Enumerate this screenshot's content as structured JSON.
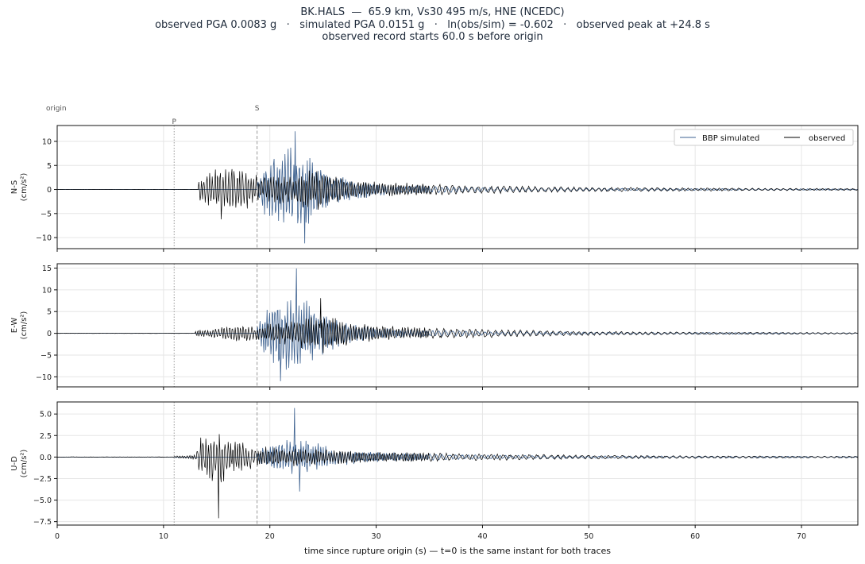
{
  "chart_data": {
    "type": "line",
    "title": "BK.HALS  —  65.9 km, Vs30 495 m/s, HNE (NCEDC)",
    "subtitle": "observed PGA 0.0083 g   ·   simulated PGA 0.0151 g   ·   ln(obs/sim) = -0.602   ·   observed peak at +24.8 s",
    "subtitle2": "observed record starts 60.0 s before origin",
    "xlabel": "time since rupture origin (s)   —   t=0 is the same instant for both traces",
    "xlim": [
      0,
      75.3
    ],
    "xticks": [
      0,
      10,
      20,
      30,
      40,
      50,
      60,
      70
    ],
    "markers": {
      "origin_label": "origin",
      "p_label": "P",
      "p_time": 11.0,
      "s_label": "S",
      "s_time": 18.8
    },
    "legend": {
      "position": "top-right",
      "simulated": "BBP simulated",
      "observed": "observed"
    },
    "colors": {
      "simulated": "#3e6290",
      "observed": "#000000",
      "grid": "#e6e6e6",
      "marker": "#999999"
    },
    "panels": [
      {
        "ylabel": "N-S",
        "yunit": "(cm/s²)",
        "ylim": [
          -12.3,
          13.3
        ],
        "yticks": [
          -10,
          -5,
          0,
          5,
          10
        ],
        "tick_labels": [
          "−10",
          "−5",
          "0",
          "5",
          "10"
        ],
        "observed": {
          "onset": 13.3,
          "envelope": [
            [
              13.3,
              2.5
            ],
            [
              14.5,
              4.5
            ],
            [
              15.5,
              5.0
            ],
            [
              16.5,
              5.5
            ],
            [
              17.5,
              4.5
            ],
            [
              19.0,
              3.0
            ],
            [
              21.0,
              3.0
            ],
            [
              23.0,
              4.0
            ],
            [
              24.5,
              4.5
            ],
            [
              26.0,
              3.0
            ],
            [
              28.0,
              2.0
            ],
            [
              32.0,
              1.5
            ],
            [
              40.0,
              0.9
            ],
            [
              50.0,
              0.5
            ],
            [
              60.0,
              0.35
            ],
            [
              70.0,
              0.25
            ],
            [
              75.3,
              0.2
            ]
          ],
          "peak": {
            "t": 15.4,
            "v": -6.2
          }
        },
        "simulated": {
          "onset": 18.8,
          "envelope": [
            [
              18.8,
              2.0
            ],
            [
              19.5,
              5.5
            ],
            [
              20.5,
              8.0
            ],
            [
              22.0,
              9.0
            ],
            [
              23.0,
              8.0
            ],
            [
              24.5,
              6.0
            ],
            [
              26.0,
              3.5
            ],
            [
              28.0,
              2.0
            ],
            [
              32.0,
              1.0
            ],
            [
              40.0,
              0.5
            ],
            [
              50.0,
              0.3
            ],
            [
              60.0,
              0.2
            ],
            [
              75.3,
              0.12
            ]
          ],
          "peak": {
            "t": 22.4,
            "v": 12.1
          },
          "trough": {
            "t": 23.3,
            "v": -11.2
          }
        }
      },
      {
        "ylabel": "E-W",
        "yunit": "(cm/s²)",
        "ylim": [
          -12.3,
          16.0
        ],
        "yticks": [
          -10,
          -5,
          0,
          5,
          10,
          15
        ],
        "tick_labels": [
          "−10",
          "−5",
          "0",
          "5",
          "10",
          "15"
        ],
        "observed": {
          "onset": 13.0,
          "envelope": [
            [
              13.0,
              0.8
            ],
            [
              14.5,
              1.2
            ],
            [
              16.5,
              2.0
            ],
            [
              18.5,
              2.0
            ],
            [
              20.5,
              2.5
            ],
            [
              22.5,
              3.0
            ],
            [
              24.8,
              5.0
            ],
            [
              26.5,
              3.5
            ],
            [
              28.0,
              2.5
            ],
            [
              32.0,
              1.6
            ],
            [
              40.0,
              1.0
            ],
            [
              50.0,
              0.5
            ],
            [
              60.0,
              0.3
            ],
            [
              75.3,
              0.2
            ]
          ],
          "peak": {
            "t": 24.8,
            "v": 8.1
          }
        },
        "simulated": {
          "onset": 18.8,
          "envelope": [
            [
              18.8,
              2.0
            ],
            [
              19.5,
              6.0
            ],
            [
              20.5,
              9.0
            ],
            [
              22.0,
              9.0
            ],
            [
              23.0,
              8.5
            ],
            [
              24.5,
              6.5
            ],
            [
              26.0,
              4.0
            ],
            [
              28.0,
              2.0
            ],
            [
              32.0,
              1.0
            ],
            [
              40.0,
              0.5
            ],
            [
              50.0,
              0.3
            ],
            [
              75.3,
              0.12
            ]
          ],
          "peak": {
            "t": 22.5,
            "v": 14.9
          },
          "trough": {
            "t": 21.0,
            "v": -11.0
          }
        }
      },
      {
        "ylabel": "U-D",
        "yunit": "(cm/s²)",
        "ylim": [
          -7.9,
          6.4
        ],
        "yticks": [
          -7.5,
          -5.0,
          -2.5,
          0.0,
          2.5,
          5.0
        ],
        "tick_labels": [
          "−7.5",
          "−5.0",
          "−2.5",
          "0.0",
          "2.5",
          "5.0"
        ],
        "observed": {
          "onset": 11.0,
          "envelope": [
            [
              11.0,
              0.15
            ],
            [
              13.0,
              0.3
            ],
            [
              13.5,
              2.5
            ],
            [
              14.5,
              3.0
            ],
            [
              15.5,
              3.0
            ],
            [
              16.5,
              2.2
            ],
            [
              18.0,
              1.5
            ],
            [
              20.0,
              1.2
            ],
            [
              24.0,
              1.0
            ],
            [
              28.0,
              0.8
            ],
            [
              32.0,
              0.6
            ],
            [
              40.0,
              0.4
            ],
            [
              50.0,
              0.25
            ],
            [
              60.0,
              0.15
            ],
            [
              75.3,
              0.1
            ]
          ],
          "peak": {
            "t": 15.2,
            "v": -7.1
          }
        },
        "simulated": {
          "onset": 18.8,
          "envelope": [
            [
              18.8,
              0.6
            ],
            [
              19.5,
              1.5
            ],
            [
              21.0,
              2.0
            ],
            [
              22.5,
              2.5
            ],
            [
              24.0,
              1.8
            ],
            [
              26.0,
              1.2
            ],
            [
              28.0,
              0.8
            ],
            [
              32.0,
              0.5
            ],
            [
              40.0,
              0.25
            ],
            [
              50.0,
              0.15
            ],
            [
              75.3,
              0.08
            ]
          ],
          "peak": {
            "t": 22.3,
            "v": 5.7
          },
          "trough": {
            "t": 22.8,
            "v": -4.0
          }
        }
      }
    ]
  }
}
